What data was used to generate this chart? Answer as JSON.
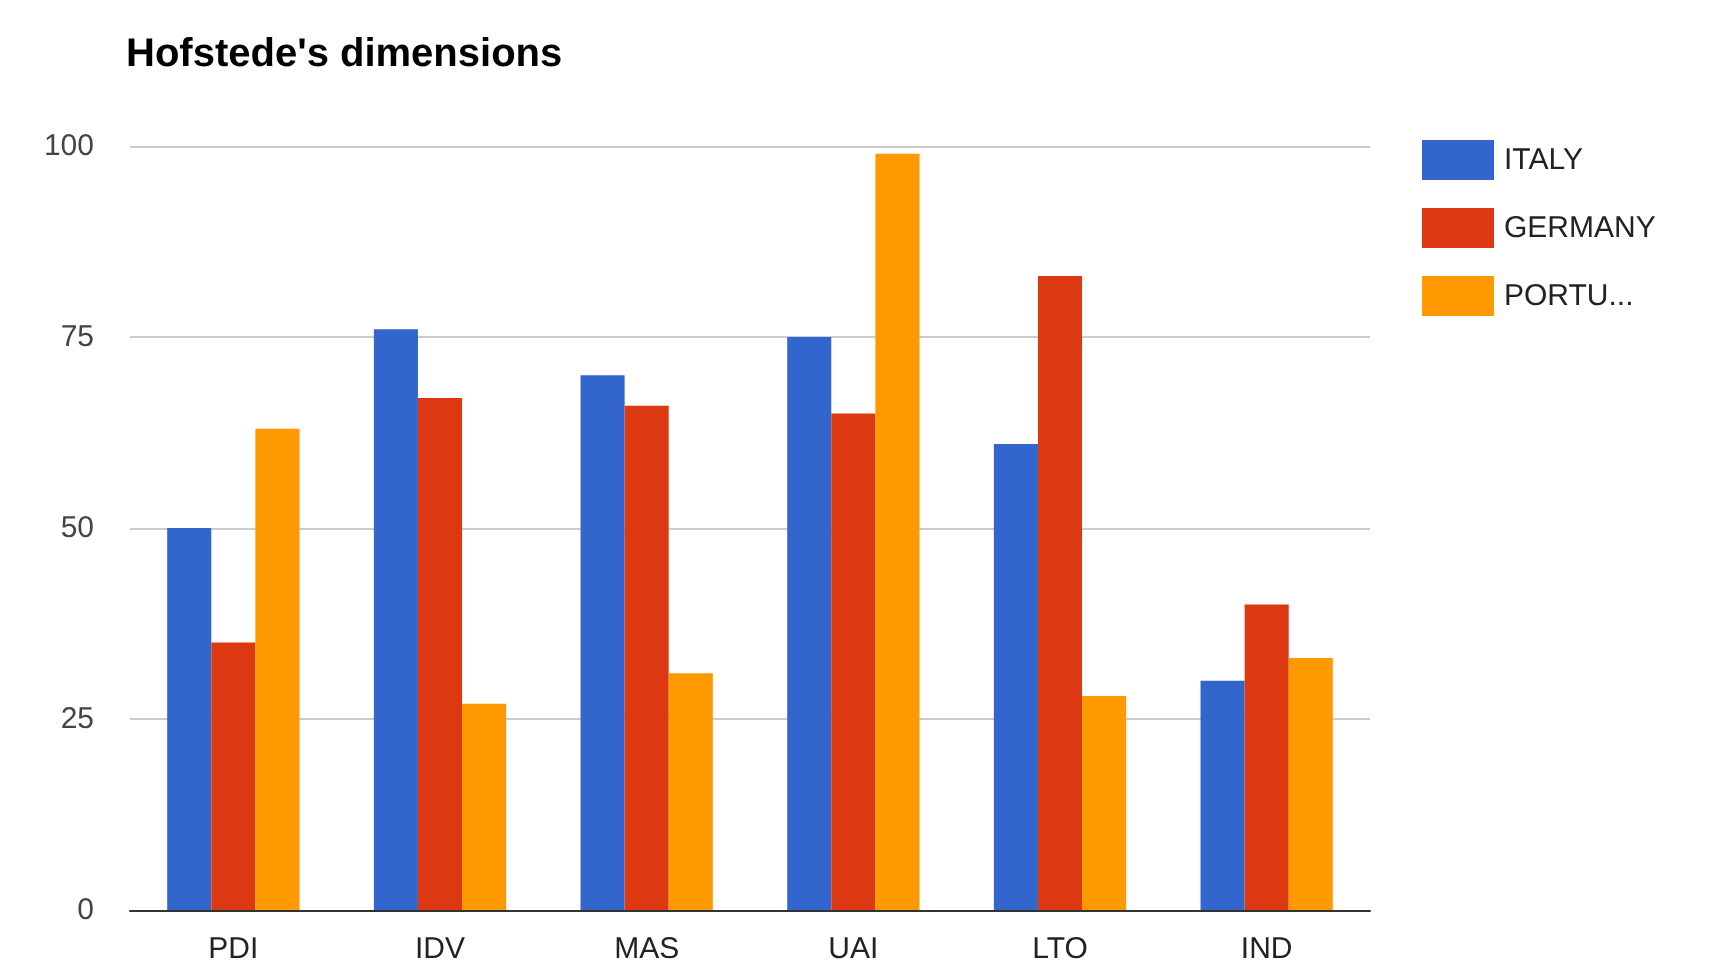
{
  "chart_data": {
    "type": "bar",
    "title": "Hofstede's dimensions",
    "categories": [
      "PDI",
      "IDV",
      "MAS",
      "UAI",
      "LTO",
      "IND"
    ],
    "series": [
      {
        "name": "ITALY",
        "color": "#3366cc",
        "values": [
          50,
          76,
          70,
          75,
          61,
          30
        ]
      },
      {
        "name": "GERMANY",
        "color": "#dc3912",
        "values": [
          35,
          67,
          66,
          65,
          83,
          40
        ]
      },
      {
        "name": "PORTU...",
        "color": "#ff9900",
        "values": [
          63,
          27,
          31,
          99,
          28,
          33
        ]
      }
    ],
    "ylim": [
      0,
      100
    ],
    "yticks": [
      0,
      25,
      50,
      75,
      100
    ],
    "grid": "y",
    "legend": "top right"
  }
}
